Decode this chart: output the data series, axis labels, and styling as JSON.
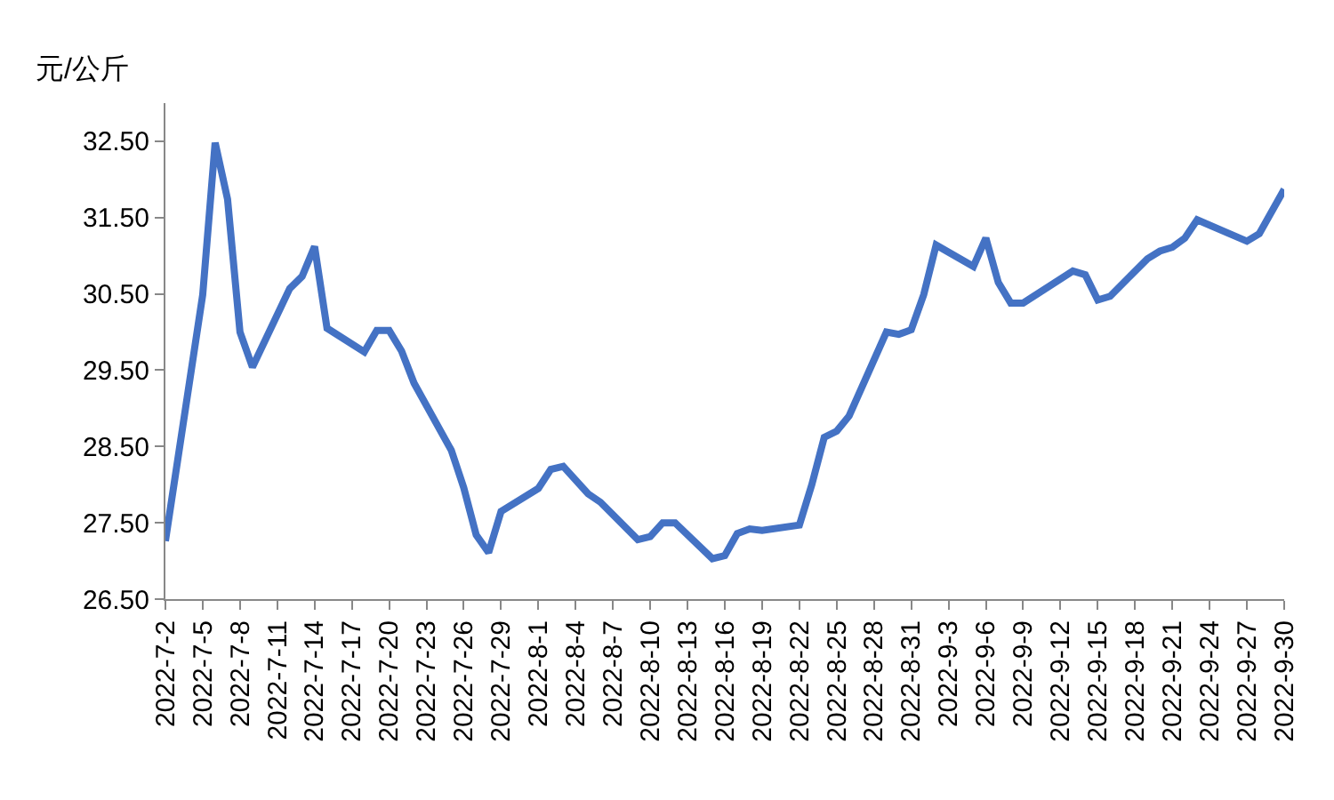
{
  "chart_data": {
    "type": "line",
    "ylabel": "元/公斤",
    "x": [
      "2022-07-02",
      "2022-07-05",
      "2022-07-06",
      "2022-07-07",
      "2022-07-08",
      "2022-07-09",
      "2022-07-12",
      "2022-07-13",
      "2022-07-14",
      "2022-07-15",
      "2022-07-18",
      "2022-07-19",
      "2022-07-20",
      "2022-07-21",
      "2022-07-22",
      "2022-07-25",
      "2022-07-26",
      "2022-07-27",
      "2022-07-28",
      "2022-07-29",
      "2022-08-01",
      "2022-08-02",
      "2022-08-03",
      "2022-08-05",
      "2022-08-06",
      "2022-08-09",
      "2022-08-10",
      "2022-08-11",
      "2022-08-12",
      "2022-08-15",
      "2022-08-16",
      "2022-08-17",
      "2022-08-18",
      "2022-08-19",
      "2022-08-22",
      "2022-08-23",
      "2022-08-24",
      "2022-08-25",
      "2022-08-26",
      "2022-08-29",
      "2022-08-30",
      "2022-08-31",
      "2022-09-01",
      "2022-09-02",
      "2022-09-05",
      "2022-09-06",
      "2022-09-07",
      "2022-09-08",
      "2022-09-09",
      "2022-09-13",
      "2022-09-14",
      "2022-09-15",
      "2022-09-16",
      "2022-09-19",
      "2022-09-20",
      "2022-09-21",
      "2022-09-22",
      "2022-09-23",
      "2022-09-27",
      "2022-09-28",
      "2022-09-30"
    ],
    "series": [
      {
        "color": "#4472c4",
        "values": [
          27.26,
          30.49,
          32.48,
          31.74,
          30.0,
          29.54,
          30.57,
          30.73,
          31.12,
          30.05,
          29.74,
          30.02,
          30.02,
          29.75,
          29.33,
          28.45,
          27.96,
          27.34,
          27.11,
          27.65,
          27.95,
          28.2,
          28.24,
          27.88,
          27.77,
          27.28,
          27.32,
          27.5,
          27.5,
          27.03,
          27.07,
          27.36,
          27.42,
          27.4,
          27.47,
          28.0,
          28.62,
          28.7,
          28.9,
          30.0,
          29.97,
          30.03,
          30.49,
          31.14,
          30.86,
          31.23,
          30.65,
          30.38,
          30.38,
          30.8,
          30.75,
          30.42,
          30.47,
          30.96,
          31.06,
          31.11,
          31.23,
          31.47,
          31.19,
          31.29,
          31.87
        ]
      }
    ],
    "xlim": [
      "2022-07-02",
      "2022-09-30"
    ],
    "xticks": [
      {
        "value": "2022-07-02",
        "label": "2022-7-2"
      },
      {
        "value": "2022-07-05",
        "label": "2022-7-5"
      },
      {
        "value": "2022-07-08",
        "label": "2022-7-8"
      },
      {
        "value": "2022-07-11",
        "label": "2022-7-11"
      },
      {
        "value": "2022-07-14",
        "label": "2022-7-14"
      },
      {
        "value": "2022-07-17",
        "label": "2022-7-17"
      },
      {
        "value": "2022-07-20",
        "label": "2022-7-20"
      },
      {
        "value": "2022-07-23",
        "label": "2022-7-23"
      },
      {
        "value": "2022-07-26",
        "label": "2022-7-26"
      },
      {
        "value": "2022-07-29",
        "label": "2022-7-29"
      },
      {
        "value": "2022-08-01",
        "label": "2022-8-1"
      },
      {
        "value": "2022-08-04",
        "label": "2022-8-4"
      },
      {
        "value": "2022-08-07",
        "label": "2022-8-7"
      },
      {
        "value": "2022-08-10",
        "label": "2022-8-10"
      },
      {
        "value": "2022-08-13",
        "label": "2022-8-13"
      },
      {
        "value": "2022-08-16",
        "label": "2022-8-16"
      },
      {
        "value": "2022-08-19",
        "label": "2022-8-19"
      },
      {
        "value": "2022-08-22",
        "label": "2022-8-22"
      },
      {
        "value": "2022-08-25",
        "label": "2022-8-25"
      },
      {
        "value": "2022-08-28",
        "label": "2022-8-28"
      },
      {
        "value": "2022-08-31",
        "label": "2022-8-31"
      },
      {
        "value": "2022-09-03",
        "label": "2022-9-3"
      },
      {
        "value": "2022-09-06",
        "label": "2022-9-6"
      },
      {
        "value": "2022-09-09",
        "label": "2022-9-9"
      },
      {
        "value": "2022-09-12",
        "label": "2022-9-12"
      },
      {
        "value": "2022-09-15",
        "label": "2022-9-15"
      },
      {
        "value": "2022-09-18",
        "label": "2022-9-18"
      },
      {
        "value": "2022-09-21",
        "label": "2022-9-21"
      },
      {
        "value": "2022-09-24",
        "label": "2022-9-24"
      },
      {
        "value": "2022-09-27",
        "label": "2022-9-27"
      },
      {
        "value": "2022-09-30",
        "label": "2022-9-30"
      }
    ],
    "ylim": [
      26.5,
      33.0
    ],
    "yticks": [
      {
        "value": 26.5,
        "label": "26.50"
      },
      {
        "value": 27.5,
        "label": "27.50"
      },
      {
        "value": 28.5,
        "label": "28.50"
      },
      {
        "value": 29.5,
        "label": "29.50"
      },
      {
        "value": 30.5,
        "label": "30.50"
      },
      {
        "value": 31.5,
        "label": "31.50"
      },
      {
        "value": 32.5,
        "label": "32.50"
      }
    ],
    "marker": "none",
    "line_style": "solid"
  }
}
